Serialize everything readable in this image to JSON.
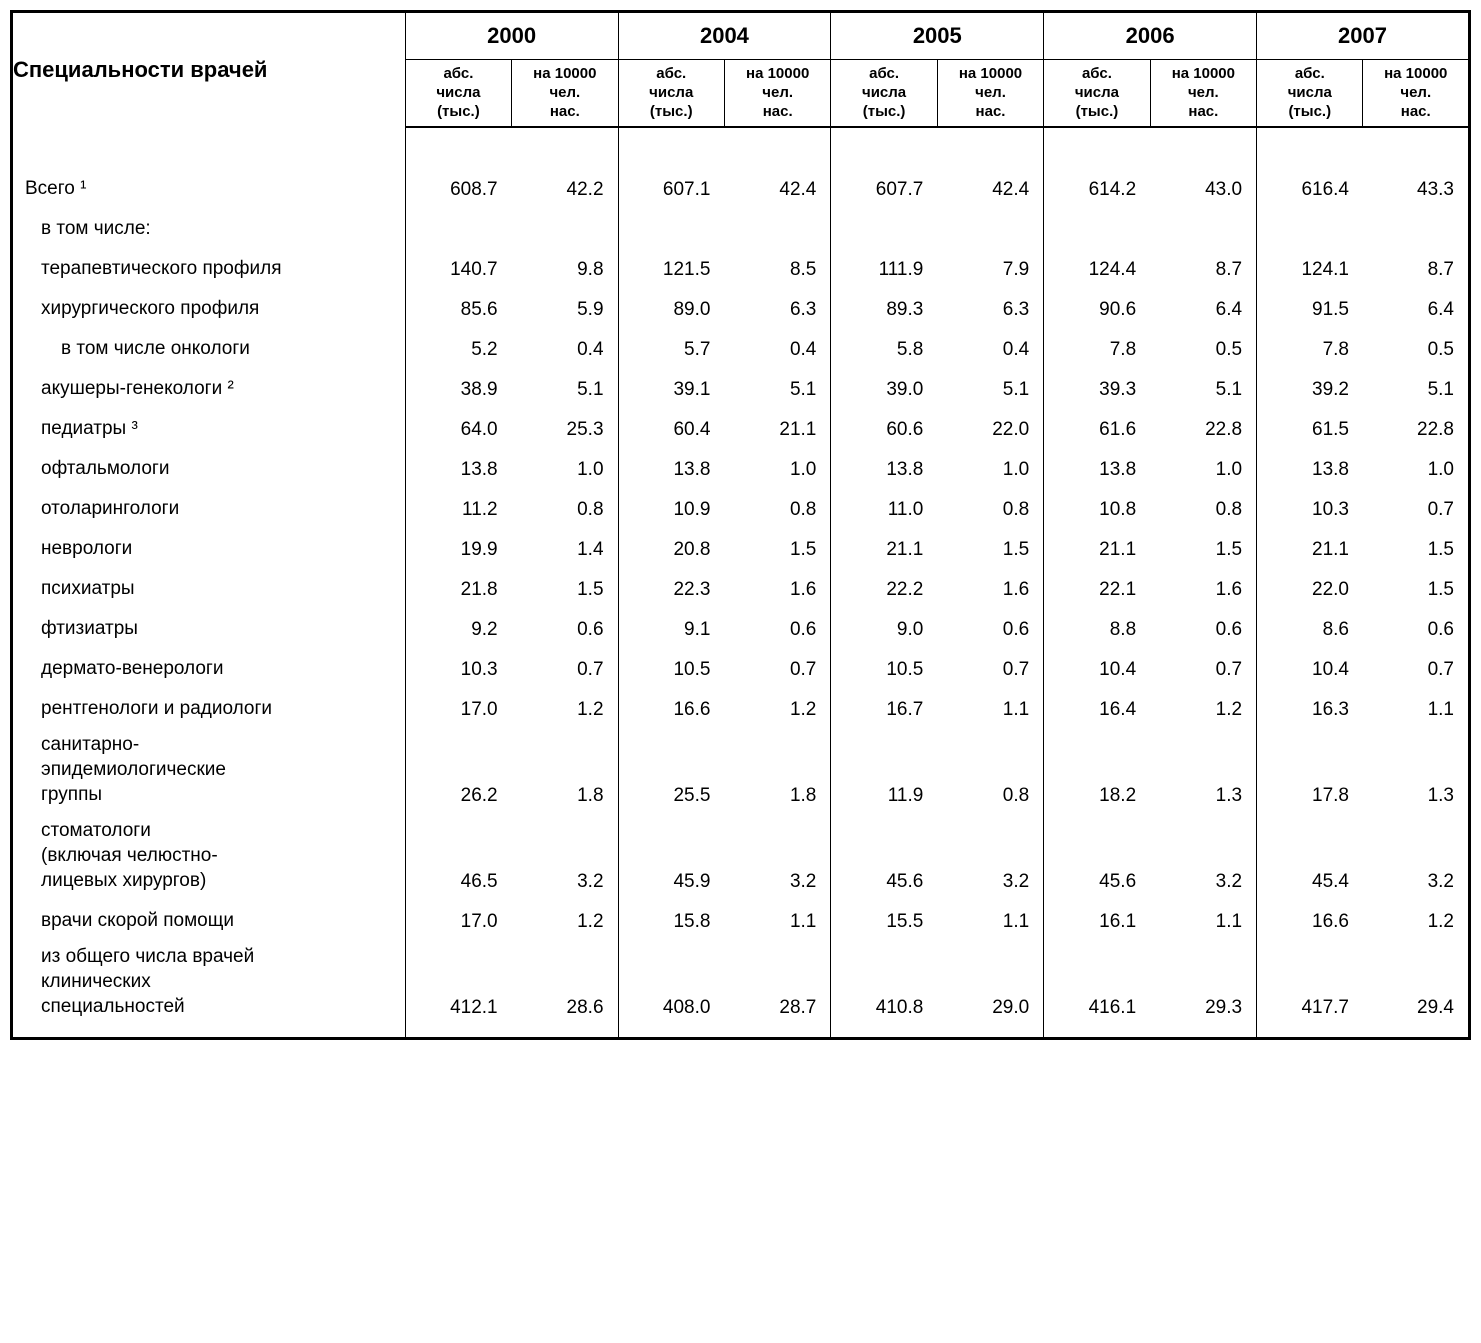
{
  "header": {
    "row_label": "Специальности врачей",
    "years": [
      "2000",
      "2004",
      "2005",
      "2006",
      "2007"
    ],
    "sub_abs": "абс.\nчисла\n(тыс.)",
    "sub_per": "на 10000\nчел.\nнас."
  },
  "rows": [
    {
      "label": "Всего ¹",
      "indent": 0,
      "values": [
        "608.7",
        "42.2",
        "607.1",
        "42.4",
        "607.7",
        "42.4",
        "614.2",
        "43.0",
        "616.4",
        "43.3"
      ]
    },
    {
      "label": "в том числе:",
      "indent": 1,
      "values": [
        "",
        "",
        "",
        "",
        "",
        "",
        "",
        "",
        "",
        ""
      ]
    },
    {
      "label": "терапевтического профиля",
      "indent": 1,
      "values": [
        "140.7",
        "9.8",
        "121.5",
        "8.5",
        "111.9",
        "7.9",
        "124.4",
        "8.7",
        "124.1",
        "8.7"
      ]
    },
    {
      "label": "хирургического профиля",
      "indent": 1,
      "values": [
        "85.6",
        "5.9",
        "89.0",
        "6.3",
        "89.3",
        "6.3",
        "90.6",
        "6.4",
        "91.5",
        "6.4"
      ]
    },
    {
      "label": "в том числе онкологи",
      "indent": 2,
      "values": [
        "5.2",
        "0.4",
        "5.7",
        "0.4",
        "5.8",
        "0.4",
        "7.8",
        "0.5",
        "7.8",
        "0.5"
      ]
    },
    {
      "label": "акушеры-генекологи ²",
      "indent": 1,
      "values": [
        "38.9",
        "5.1",
        "39.1",
        "5.1",
        "39.0",
        "5.1",
        "39.3",
        "5.1",
        "39.2",
        "5.1"
      ]
    },
    {
      "label": "педиатры  ³",
      "indent": 1,
      "values": [
        "64.0",
        "25.3",
        "60.4",
        "21.1",
        "60.6",
        "22.0",
        "61.6",
        "22.8",
        "61.5",
        "22.8"
      ]
    },
    {
      "label": "офтальмологи",
      "indent": 1,
      "values": [
        "13.8",
        "1.0",
        "13.8",
        "1.0",
        "13.8",
        "1.0",
        "13.8",
        "1.0",
        "13.8",
        "1.0"
      ]
    },
    {
      "label": "отоларингологи",
      "indent": 1,
      "values": [
        "11.2",
        "0.8",
        "10.9",
        "0.8",
        "11.0",
        "0.8",
        "10.8",
        "0.8",
        "10.3",
        "0.7"
      ]
    },
    {
      "label": "неврологи",
      "indent": 1,
      "values": [
        "19.9",
        "1.4",
        "20.8",
        "1.5",
        "21.1",
        "1.5",
        "21.1",
        "1.5",
        "21.1",
        "1.5"
      ]
    },
    {
      "label": "психиатры",
      "indent": 1,
      "values": [
        "21.8",
        "1.5",
        "22.3",
        "1.6",
        "22.2",
        "1.6",
        "22.1",
        "1.6",
        "22.0",
        "1.5"
      ]
    },
    {
      "label": "фтизиатры",
      "indent": 1,
      "values": [
        "9.2",
        "0.6",
        "9.1",
        "0.6",
        "9.0",
        "0.6",
        "8.8",
        "0.6",
        "8.6",
        "0.6"
      ]
    },
    {
      "label": "дермато-венерологи",
      "indent": 1,
      "values": [
        "10.3",
        "0.7",
        "10.5",
        "0.7",
        "10.5",
        "0.7",
        "10.4",
        "0.7",
        "10.4",
        "0.7"
      ]
    },
    {
      "label": "рентгенологи и радиологи",
      "indent": 1,
      "values": [
        "17.0",
        "1.2",
        "16.6",
        "1.2",
        "16.7",
        "1.1",
        "16.4",
        "1.2",
        "16.3",
        "1.1"
      ]
    },
    {
      "label": "санитарно-\nэпидемиологические\nгруппы",
      "indent": 1,
      "values": [
        "26.2",
        "1.8",
        "25.5",
        "1.8",
        "11.9",
        "0.8",
        "18.2",
        "1.3",
        "17.8",
        "1.3"
      ]
    },
    {
      "label": "стоматологи\n(включая челюстно-\nлицевых хирургов)",
      "indent": 1,
      "values": [
        "46.5",
        "3.2",
        "45.9",
        "3.2",
        "45.6",
        "3.2",
        "45.6",
        "3.2",
        "45.4",
        "3.2"
      ]
    },
    {
      "label": "врачи скорой помощи",
      "indent": 1,
      "values": [
        "17.0",
        "1.2",
        "15.8",
        "1.1",
        "15.5",
        "1.1",
        "16.1",
        "1.1",
        "16.6",
        "1.2"
      ]
    },
    {
      "label": "из общего числа врачей\nклинических\nспециальностей",
      "indent": 1,
      "values": [
        "412.1",
        "28.6",
        "408.0",
        "28.7",
        "410.8",
        "29.0",
        "416.1",
        "29.3",
        "417.7",
        "29.4"
      ]
    }
  ],
  "layout": {
    "col_widths_pct": [
      27,
      7.3,
      7.3,
      7.3,
      7.3,
      7.3,
      7.3,
      7.3,
      7.3,
      7.3,
      7.3
    ]
  }
}
